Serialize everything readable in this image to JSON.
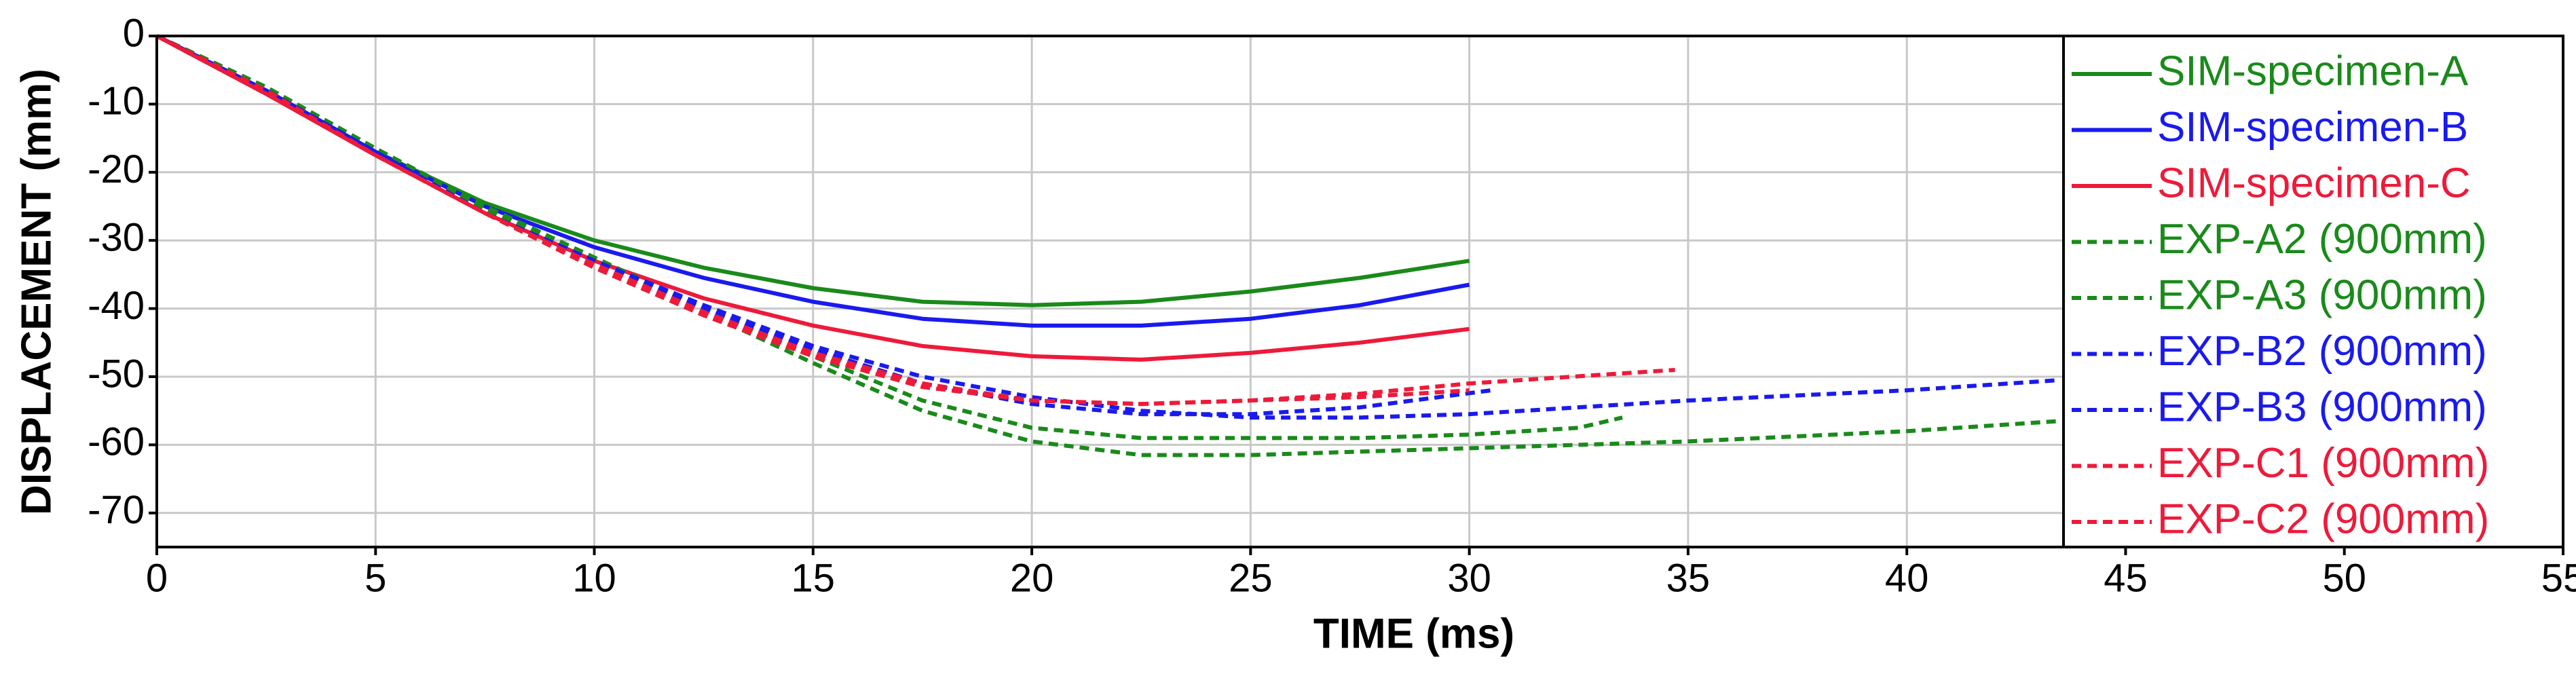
{
  "chart_data": {
    "type": "line",
    "xlabel": "TIME (ms)",
    "ylabel": "DISPLACEMENT (mm)",
    "xlim": [
      0,
      55
    ],
    "xticks": [
      0,
      5,
      10,
      15,
      20,
      25,
      30,
      35,
      40,
      45,
      50,
      55
    ],
    "ylim": [
      -75,
      0
    ],
    "yticks": [
      0,
      -10,
      -20,
      -30,
      -40,
      -50,
      -60,
      -70
    ],
    "grid": true,
    "legend": "right",
    "series": [
      {
        "name": "SIM-specimen-A",
        "color": "#1a8a1a",
        "style": "solid",
        "x": [
          0,
          2.5,
          5,
          7.5,
          10,
          12.5,
          15,
          17.5,
          20,
          22.5,
          25,
          27.5,
          30
        ],
        "values": [
          0,
          -8,
          -17,
          -24.5,
          -30,
          -34,
          -37,
          -39,
          -39.5,
          -39,
          -37.5,
          -35.5,
          -33
        ]
      },
      {
        "name": "SIM-specimen-B",
        "color": "#1a1aee",
        "style": "solid",
        "x": [
          0,
          2.5,
          5,
          7.5,
          10,
          12.5,
          15,
          17.5,
          20,
          22.5,
          25,
          27.5,
          30
        ],
        "values": [
          0,
          -8,
          -17,
          -25,
          -31,
          -35.5,
          -39,
          -41.5,
          -42.5,
          -42.5,
          -41.5,
          -39.5,
          -36.5
        ]
      },
      {
        "name": "SIM-specimen-C",
        "color": "#ee1a3a",
        "style": "solid",
        "x": [
          0,
          2.5,
          5,
          7.5,
          10,
          12.5,
          15,
          17.5,
          20,
          22.5,
          25,
          27.5,
          30
        ],
        "values": [
          0,
          -8.5,
          -17.5,
          -26,
          -33,
          -38.5,
          -42.5,
          -45.5,
          -47,
          -47.5,
          -46.5,
          -45,
          -43
        ]
      },
      {
        "name": "EXP-A2 (900mm)",
        "color": "#1a8a1a",
        "style": "dashed",
        "x": [
          0,
          2.5,
          5,
          7.5,
          10,
          12.5,
          15,
          17.5,
          20,
          22.5,
          25,
          27.5,
          30,
          32.5,
          33.5
        ],
        "values": [
          0,
          -7.5,
          -16.5,
          -25,
          -32.5,
          -40,
          -47,
          -53.5,
          -57.5,
          -59,
          -59,
          -59,
          -58.5,
          -57.5,
          -56
        ]
      },
      {
        "name": "EXP-A3 (900mm)",
        "color": "#1a8a1a",
        "style": "dashed",
        "x": [
          0,
          2.5,
          5,
          7.5,
          10,
          12.5,
          15,
          17.5,
          20,
          22.5,
          25,
          27.5,
          30,
          35,
          40,
          43.5
        ],
        "values": [
          0,
          -7.5,
          -16.5,
          -25.5,
          -33,
          -40.5,
          -48,
          -55,
          -59.5,
          -61.5,
          -61.5,
          -61,
          -60.5,
          -59.5,
          -58,
          -56.5
        ]
      },
      {
        "name": "EXP-B2 (900mm)",
        "color": "#1a1aee",
        "style": "dashed",
        "x": [
          0,
          2.5,
          5,
          7.5,
          10,
          12.5,
          15,
          17.5,
          20,
          22.5,
          25,
          27.5,
          30,
          35,
          40,
          43.5
        ],
        "values": [
          0,
          -8,
          -17,
          -26,
          -33,
          -39.5,
          -45.5,
          -50,
          -53,
          -55,
          -56,
          -56,
          -55.5,
          -53.5,
          -52,
          -50.5
        ]
      },
      {
        "name": "EXP-B3 (900mm)",
        "color": "#1a1aee",
        "style": "dashed",
        "x": [
          0,
          2.5,
          5,
          7.5,
          10,
          12.5,
          15,
          17.5,
          20,
          22.5,
          25,
          27.5,
          30.5
        ],
        "values": [
          0,
          -8,
          -17,
          -26,
          -33.5,
          -40,
          -46,
          -51,
          -54,
          -55.5,
          -55.5,
          -54.5,
          -52
        ]
      },
      {
        "name": "EXP-C1 (900mm)",
        "color": "#ee1a3a",
        "style": "dashed",
        "x": [
          0,
          2.5,
          5,
          7.5,
          10,
          12.5,
          15,
          17.5,
          20,
          22.5,
          25,
          27.5,
          30,
          34.7
        ],
        "values": [
          0,
          -8,
          -17.5,
          -26,
          -33.5,
          -40.5,
          -46.5,
          -51,
          -53.5,
          -54,
          -53.5,
          -52.5,
          -51,
          -49
        ]
      },
      {
        "name": "EXP-C2 (900mm)",
        "color": "#ee1a3a",
        "style": "dashed",
        "x": [
          0,
          2.5,
          5,
          7.5,
          10,
          12.5,
          15,
          17.5,
          20,
          22.5,
          25,
          27.5,
          30
        ],
        "values": [
          0,
          -8.5,
          -17.5,
          -26,
          -34,
          -41,
          -47,
          -51.5,
          -53.5,
          -54,
          -53.5,
          -53,
          -52
        ]
      }
    ]
  }
}
